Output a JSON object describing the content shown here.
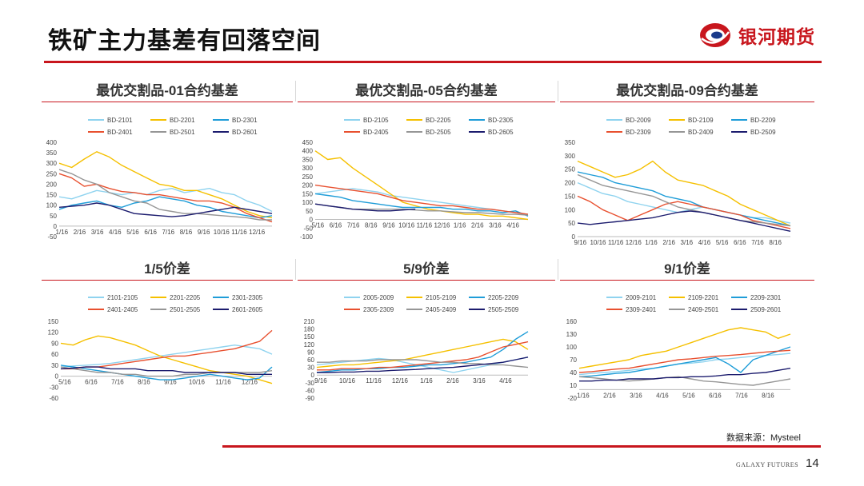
{
  "header": {
    "title": "铁矿主力基差有回落空间"
  },
  "logo": {
    "text": "银河期货",
    "mark": "galaxy-logo-icon",
    "color": "#c8161d"
  },
  "footer": {
    "source": "数据来源：Mysteel",
    "brand": "GALAXY FUTURES",
    "page": "14"
  },
  "chart_data": [
    {
      "id": "c1",
      "type": "line",
      "title": "最优交割品-01合约基差",
      "ylim": [
        -50,
        400
      ],
      "yticks": [
        400,
        350,
        300,
        250,
        200,
        150,
        100,
        50,
        0,
        -50
      ],
      "xticks": [
        "1/16",
        "2/16",
        "3/16",
        "4/16",
        "5/16",
        "6/16",
        "7/16",
        "8/16",
        "9/16",
        "10/16",
        "11/16",
        "12/16"
      ],
      "series": [
        {
          "name": "BD-2101",
          "color": "#8fd3ef",
          "values": [
            140,
            130,
            150,
            170,
            160,
            150,
            160,
            150,
            170,
            180,
            160,
            170,
            180,
            160,
            150,
            120,
            100,
            70
          ]
        },
        {
          "name": "BD-2201",
          "color": "#f5c000",
          "values": [
            300,
            280,
            320,
            355,
            330,
            290,
            260,
            230,
            200,
            190,
            170,
            170,
            150,
            130,
            100,
            70,
            50,
            40
          ]
        },
        {
          "name": "BD-2301",
          "color": "#1f9dd8",
          "values": [
            80,
            100,
            110,
            120,
            100,
            90,
            110,
            120,
            140,
            130,
            120,
            100,
            90,
            70,
            60,
            50,
            40,
            50
          ]
        },
        {
          "name": "BD-2401",
          "color": "#e8502f",
          "values": [
            250,
            230,
            190,
            200,
            180,
            165,
            160,
            150,
            150,
            140,
            130,
            120,
            120,
            110,
            90,
            60,
            40,
            20
          ]
        },
        {
          "name": "BD-2501",
          "color": "#969696",
          "values": [
            270,
            250,
            220,
            200,
            160,
            140,
            120,
            110,
            80,
            70,
            60,
            60,
            55,
            50,
            45,
            40,
            30,
            30
          ]
        },
        {
          "name": "BD-2601",
          "color": "#1c1c6e",
          "values": [
            90,
            95,
            100,
            110,
            100,
            80,
            60,
            55,
            50,
            45,
            50,
            60,
            70,
            80,
            90,
            80,
            70,
            60
          ]
        }
      ]
    },
    {
      "id": "c2",
      "type": "line",
      "title": "最优交割品-05合约基差",
      "ylim": [
        -100,
        450
      ],
      "yticks": [
        450,
        400,
        350,
        300,
        250,
        200,
        150,
        100,
        50,
        0,
        -50,
        -100
      ],
      "xticks": [
        "5/16",
        "6/16",
        "7/16",
        "8/16",
        "9/16",
        "10/16",
        "11/16",
        "12/16",
        "1/16",
        "2/16",
        "3/16",
        "4/16"
      ],
      "series": [
        {
          "name": "BD-2105",
          "color": "#8fd3ef",
          "values": [
            150,
            160,
            170,
            180,
            170,
            160,
            140,
            130,
            120,
            110,
            100,
            90,
            80,
            70,
            60,
            50,
            40,
            30
          ]
        },
        {
          "name": "BD-2205",
          "color": "#f5c000",
          "values": [
            400,
            350,
            360,
            300,
            250,
            200,
            150,
            100,
            80,
            60,
            50,
            40,
            30,
            30,
            20,
            20,
            10,
            0
          ]
        },
        {
          "name": "BD-2305",
          "color": "#1f9dd8",
          "values": [
            150,
            140,
            130,
            110,
            100,
            90,
            80,
            70,
            70,
            70,
            70,
            60,
            60,
            50,
            50,
            40,
            50,
            20
          ]
        },
        {
          "name": "BD-2405",
          "color": "#e8502f",
          "values": [
            200,
            190,
            180,
            170,
            160,
            150,
            130,
            110,
            100,
            90,
            80,
            80,
            70,
            60,
            60,
            50,
            40,
            30
          ]
        },
        {
          "name": "BD-2505",
          "color": "#969696",
          "values": [
            90,
            80,
            70,
            60,
            60,
            60,
            60,
            60,
            55,
            50,
            50,
            45,
            40,
            40,
            35,
            30,
            30,
            25
          ]
        },
        {
          "name": "BD-2605",
          "color": "#1c1c6e",
          "values": [
            90,
            80,
            70,
            60,
            55,
            50,
            50,
            55,
            60,
            null,
            null,
            null,
            null,
            null,
            null,
            null,
            null,
            null
          ]
        }
      ]
    },
    {
      "id": "c3",
      "type": "line",
      "title": "最优交割品-09合约基差",
      "ylim": [
        0,
        350
      ],
      "yticks": [
        350,
        300,
        250,
        200,
        150,
        100,
        50,
        0
      ],
      "xticks": [
        "9/16",
        "10/16",
        "11/16",
        "12/16",
        "1/16",
        "2/16",
        "3/16",
        "4/16",
        "5/16",
        "6/16",
        "7/16",
        "8/16"
      ],
      "series": [
        {
          "name": "BD-2009",
          "color": "#8fd3ef",
          "values": [
            200,
            180,
            160,
            150,
            130,
            120,
            110,
            100,
            90,
            100,
            110,
            100,
            90,
            80,
            70,
            70,
            60,
            50
          ]
        },
        {
          "name": "BD-2109",
          "color": "#f5c000",
          "values": [
            280,
            260,
            240,
            220,
            230,
            250,
            280,
            240,
            210,
            200,
            190,
            170,
            150,
            120,
            100,
            80,
            60,
            40
          ]
        },
        {
          "name": "BD-2209",
          "color": "#1f9dd8",
          "values": [
            240,
            230,
            220,
            200,
            190,
            180,
            170,
            150,
            140,
            130,
            110,
            100,
            90,
            80,
            70,
            60,
            50,
            40
          ]
        },
        {
          "name": "BD-2309",
          "color": "#e8502f",
          "values": [
            150,
            130,
            100,
            80,
            60,
            80,
            100,
            120,
            130,
            120,
            110,
            100,
            90,
            80,
            60,
            50,
            40,
            30
          ]
        },
        {
          "name": "BD-2409",
          "color": "#969696",
          "values": [
            230,
            210,
            190,
            180,
            170,
            160,
            150,
            130,
            110,
            100,
            90,
            80,
            70,
            60,
            55,
            50,
            45,
            40
          ]
        },
        {
          "name": "BD-2509",
          "color": "#1c1c6e",
          "values": [
            50,
            45,
            50,
            55,
            60,
            65,
            70,
            80,
            90,
            95,
            90,
            80,
            70,
            60,
            50,
            40,
            30,
            20
          ]
        }
      ]
    },
    {
      "id": "c4",
      "type": "line",
      "title": "1/5价差",
      "ylim": [
        -60,
        150
      ],
      "yticks": [
        150,
        120,
        90,
        60,
        30,
        0,
        -30,
        -60
      ],
      "xticks": [
        "5/16",
        "6/16",
        "7/16",
        "8/16",
        "9/16",
        "10/16",
        "11/16",
        "12/16"
      ],
      "series": [
        {
          "name": "2101-2105",
          "color": "#8fd3ef",
          "values": [
            25,
            28,
            30,
            32,
            35,
            40,
            45,
            50,
            55,
            60,
            65,
            70,
            75,
            80,
            85,
            80,
            75,
            60
          ]
        },
        {
          "name": "2201-2205",
          "color": "#f5c000",
          "values": [
            90,
            85,
            100,
            110,
            105,
            95,
            85,
            70,
            55,
            45,
            35,
            25,
            15,
            10,
            5,
            0,
            -10,
            -20
          ]
        },
        {
          "name": "2301-2305",
          "color": "#1f9dd8",
          "values": [
            30,
            25,
            20,
            15,
            10,
            5,
            0,
            -5,
            -10,
            -10,
            -5,
            0,
            5,
            0,
            -5,
            -10,
            -5,
            25
          ]
        },
        {
          "name": "2401-2405",
          "color": "#e8502f",
          "values": [
            20,
            20,
            25,
            25,
            30,
            35,
            40,
            45,
            50,
            55,
            55,
            60,
            65,
            70,
            75,
            85,
            95,
            125
          ]
        },
        {
          "name": "2501-2505",
          "color": "#969696",
          "values": [
            25,
            20,
            15,
            10,
            10,
            5,
            5,
            0,
            0,
            0,
            5,
            5,
            10,
            10,
            10,
            10,
            10,
            15
          ]
        },
        {
          "name": "2601-2605",
          "color": "#1c1c6e",
          "values": [
            20,
            22,
            25,
            25,
            20,
            20,
            20,
            15,
            15,
            15,
            10,
            10,
            10,
            10,
            10,
            5,
            5,
            5
          ]
        }
      ]
    },
    {
      "id": "c5",
      "type": "line",
      "title": "5/9价差",
      "ylim": [
        -90,
        210
      ],
      "yticks": [
        210,
        180,
        150,
        120,
        90,
        60,
        30,
        0,
        -30,
        -60,
        -90
      ],
      "xticks": [
        "9/16",
        "10/16",
        "11/16",
        "12/16",
        "1/16",
        "2/16",
        "3/16",
        "4/16"
      ],
      "series": [
        {
          "name": "2005-2009",
          "color": "#8fd3ef",
          "values": [
            40,
            45,
            50,
            55,
            60,
            65,
            60,
            50,
            40,
            30,
            20,
            10,
            20,
            30,
            40,
            50,
            60,
            70
          ]
        },
        {
          "name": "2105-2109",
          "color": "#f5c000",
          "values": [
            30,
            35,
            40,
            40,
            45,
            50,
            55,
            60,
            70,
            80,
            90,
            100,
            110,
            120,
            130,
            140,
            130,
            100
          ]
        },
        {
          "name": "2205-2209",
          "color": "#1f9dd8",
          "values": [
            10,
            15,
            20,
            20,
            25,
            25,
            30,
            30,
            35,
            40,
            40,
            45,
            50,
            60,
            70,
            100,
            140,
            170
          ]
        },
        {
          "name": "2305-2309",
          "color": "#e8502f",
          "values": [
            20,
            20,
            25,
            25,
            25,
            30,
            30,
            35,
            40,
            45,
            50,
            55,
            60,
            70,
            90,
            110,
            120,
            130
          ]
        },
        {
          "name": "2405-2409",
          "color": "#969696",
          "values": [
            50,
            50,
            55,
            55,
            55,
            60,
            60,
            60,
            60,
            55,
            50,
            50,
            45,
            45,
            40,
            40,
            35,
            30
          ]
        },
        {
          "name": "2505-2509",
          "color": "#1c1c6e",
          "values": [
            10,
            10,
            12,
            12,
            15,
            15,
            18,
            20,
            22,
            25,
            28,
            30,
            35,
            40,
            45,
            50,
            60,
            70
          ]
        }
      ]
    },
    {
      "id": "c6",
      "type": "line",
      "title": "9/1价差",
      "ylim": [
        -20,
        160
      ],
      "yticks": [
        160,
        130,
        100,
        70,
        40,
        10,
        -20
      ],
      "xticks": [
        "1/16",
        "2/16",
        "3/16",
        "4/16",
        "5/16",
        "6/16",
        "7/16",
        "8/16"
      ],
      "series": [
        {
          "name": "2009-2101",
          "color": "#8fd3ef",
          "values": [
            35,
            38,
            40,
            42,
            45,
            48,
            50,
            55,
            60,
            62,
            65,
            70,
            72,
            75,
            78,
            80,
            82,
            85
          ]
        },
        {
          "name": "2109-2201",
          "color": "#f5c000",
          "values": [
            50,
            55,
            60,
            65,
            70,
            80,
            85,
            90,
            100,
            110,
            120,
            130,
            140,
            145,
            140,
            135,
            120,
            130
          ]
        },
        {
          "name": "2209-2301",
          "color": "#1f9dd8",
          "values": [
            30,
            32,
            35,
            38,
            40,
            45,
            50,
            55,
            60,
            65,
            70,
            75,
            60,
            40,
            70,
            80,
            90,
            100
          ]
        },
        {
          "name": "2309-2401",
          "color": "#e8502f",
          "values": [
            40,
            42,
            45,
            48,
            50,
            55,
            60,
            65,
            70,
            72,
            75,
            78,
            80,
            82,
            85,
            88,
            90,
            92
          ]
        },
        {
          "name": "2409-2501",
          "color": "#969696",
          "values": [
            30,
            28,
            25,
            22,
            20,
            22,
            25,
            28,
            30,
            25,
            20,
            18,
            15,
            12,
            10,
            15,
            20,
            25
          ]
        },
        {
          "name": "2509-2601",
          "color": "#1c1c6e",
          "values": [
            20,
            20,
            22,
            22,
            25,
            25,
            25,
            28,
            28,
            30,
            30,
            32,
            35,
            35,
            38,
            40,
            45,
            50
          ]
        }
      ]
    }
  ]
}
